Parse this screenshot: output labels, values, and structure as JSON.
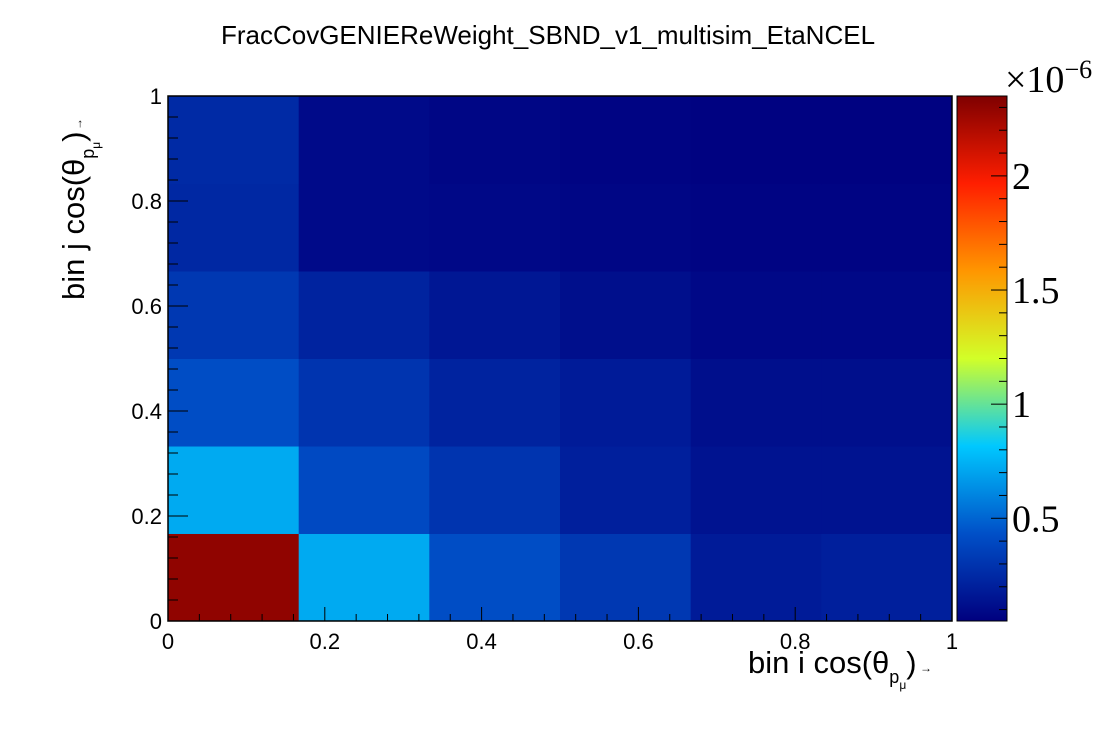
{
  "chart_data": {
    "type": "heatmap",
    "title": "FracCovGENIEReWeight_SBND_v1_multisim_EtaNCEL",
    "x_bin_edges": [
      0,
      0.1667,
      0.3333,
      0.5,
      0.6667,
      0.8333,
      1
    ],
    "y_bin_edges": [
      0,
      0.1667,
      0.3333,
      0.5,
      0.6667,
      0.8333,
      1
    ],
    "values_e-6": [
      [
        2.3,
        0.72,
        0.42,
        0.32,
        0.18,
        0.2
      ],
      [
        0.72,
        0.4,
        0.3,
        0.2,
        0.14,
        0.14
      ],
      [
        0.42,
        0.3,
        0.22,
        0.18,
        0.12,
        0.12
      ],
      [
        0.32,
        0.22,
        0.16,
        0.12,
        0.09,
        0.09
      ],
      [
        0.24,
        0.1,
        0.09,
        0.08,
        0.07,
        0.07
      ],
      [
        0.25,
        0.1,
        0.08,
        0.07,
        0.06,
        0.06
      ]
    ],
    "zlim": [
      0.05,
      2.35
    ],
    "z_multiplier": "×10",
    "z_multiplier_exponent": "−6",
    "xlabel": {
      "main": "bin i cos(θ",
      "sub": "p",
      "subsub": "μ",
      "close": ")"
    },
    "ylabel": {
      "main": "bin j cos(θ",
      "sub": "p",
      "subsub": "μ",
      "close": ")"
    },
    "xlim": [
      0,
      1
    ],
    "ylim": [
      0,
      1
    ],
    "x_ticks": [
      "0",
      "0.2",
      "0.4",
      "0.6",
      "0.8",
      "1"
    ],
    "x_tick_values": [
      0,
      0.2,
      0.4,
      0.6,
      0.8,
      1
    ],
    "y_ticks": [
      "0",
      "0.2",
      "0.4",
      "0.6",
      "0.8",
      "1"
    ],
    "y_tick_values": [
      0,
      0.2,
      0.4,
      0.6,
      0.8,
      1
    ],
    "z_ticks": [
      "0.5",
      "1",
      "1.5",
      "2"
    ],
    "z_tick_values": [
      0.5,
      1,
      1.5,
      2
    ],
    "colormap": [
      "#00007f",
      "#0050c8",
      "#00c8ff",
      "#d2ff28",
      "#ff9600",
      "#ff1e00",
      "#7f0000"
    ]
  }
}
